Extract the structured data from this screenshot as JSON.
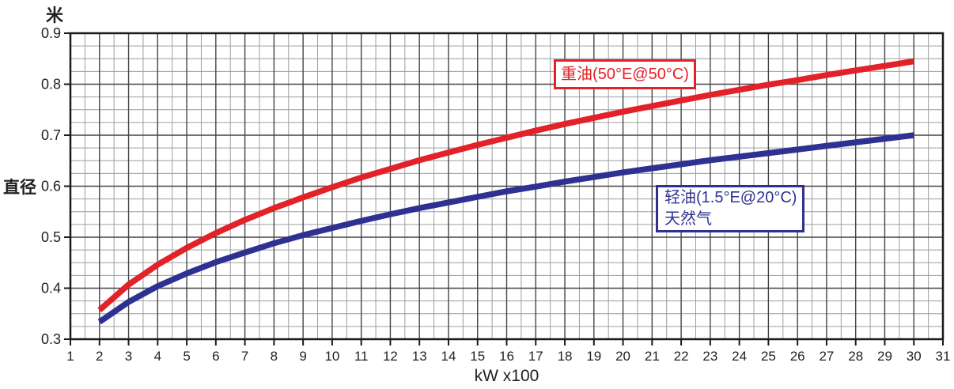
{
  "chart_data": {
    "type": "line",
    "title": "",
    "xlabel": "kW x100",
    "ylabel_unit": "米",
    "ylabel_title": "直径",
    "xlim": [
      1,
      31
    ],
    "ylim": [
      0.3,
      0.9
    ],
    "x_minor_step": 0.5,
    "y_minor_step": 0.025,
    "grid": true,
    "xticks": [
      1,
      2,
      3,
      4,
      5,
      6,
      7,
      8,
      9,
      10,
      11,
      12,
      13,
      14,
      15,
      16,
      17,
      18,
      19,
      20,
      21,
      22,
      23,
      24,
      25,
      26,
      27,
      28,
      29,
      30,
      31
    ],
    "yticks": [
      "0.9",
      "0.8",
      "0.7",
      "0.6",
      "0.5",
      "0.4",
      "0.3"
    ],
    "x": [
      2,
      3,
      4,
      5,
      6,
      7,
      8,
      9,
      10,
      11,
      12,
      13,
      14,
      15,
      16,
      17,
      18,
      19,
      20,
      21,
      22,
      23,
      24,
      25,
      26,
      27,
      28,
      29,
      30
    ],
    "series": [
      {
        "name": "重油(50°E@50°C)",
        "label_line1": "重油(50°E@50°C)",
        "color": "#e32128",
        "values": [
          0.357,
          0.407,
          0.446,
          0.479,
          0.508,
          0.534,
          0.557,
          0.578,
          0.598,
          0.617,
          0.634,
          0.651,
          0.666,
          0.681,
          0.695,
          0.709,
          0.722,
          0.734,
          0.746,
          0.757,
          0.768,
          0.779,
          0.789,
          0.799,
          0.808,
          0.818,
          0.827,
          0.836,
          0.845
        ]
      },
      {
        "name": "轻油(1.5°E@20°C) 天然气",
        "label_line1": "轻油(1.5°E@20°C)",
        "label_line2": "天然气",
        "color": "#2e3192",
        "values": [
          0.334,
          0.373,
          0.404,
          0.429,
          0.451,
          0.47,
          0.488,
          0.504,
          0.518,
          0.532,
          0.545,
          0.557,
          0.568,
          0.579,
          0.59,
          0.599,
          0.609,
          0.618,
          0.627,
          0.635,
          0.643,
          0.651,
          0.658,
          0.665,
          0.672,
          0.679,
          0.686,
          0.693,
          0.7
        ]
      }
    ],
    "style": {
      "frame_color": "#1a1a1a",
      "major_grid_color": "#454545",
      "minor_grid_color": "#9d9d9d",
      "text_color": "#231f20",
      "line_width": 7.5
    },
    "legend_position": "inline-boxes-on-plot"
  }
}
